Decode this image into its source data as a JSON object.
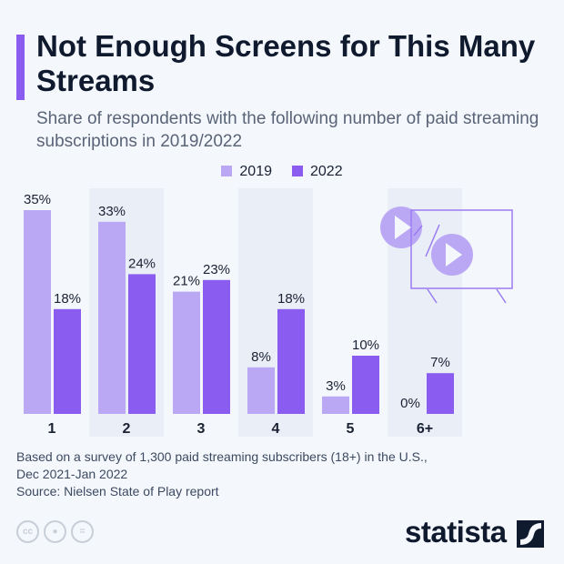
{
  "header": {
    "title": "Not Enough Screens for This Many Streams",
    "subtitle": "Share of respondents with the following number of paid streaming subscriptions in 2019/2022"
  },
  "colors": {
    "accent": "#8b5cf0",
    "2019": "#bba8f5",
    "2022": "#8b5cf0",
    "band": "#e9eef7"
  },
  "chart_data": {
    "type": "bar",
    "categories": [
      "1",
      "2",
      "3",
      "4",
      "5",
      "6+"
    ],
    "series": [
      {
        "name": "2019",
        "values": [
          35,
          33,
          21,
          8,
          3,
          0
        ]
      },
      {
        "name": "2022",
        "values": [
          18,
          24,
          23,
          18,
          10,
          7
        ]
      }
    ],
    "value_suffix": "%",
    "ylim": [
      0,
      35
    ],
    "legend": "top-center",
    "grid": false
  },
  "footer": {
    "note_line1": "Based on a survey of 1,300 paid streaming subscribers (18+) in the U.S.,",
    "note_line2": "Dec 2021-Jan 2022",
    "source": "Source: Nielsen State of Play report",
    "logo": "statista",
    "icons": [
      "cc-icon",
      "by-icon",
      "nd-icon"
    ]
  }
}
